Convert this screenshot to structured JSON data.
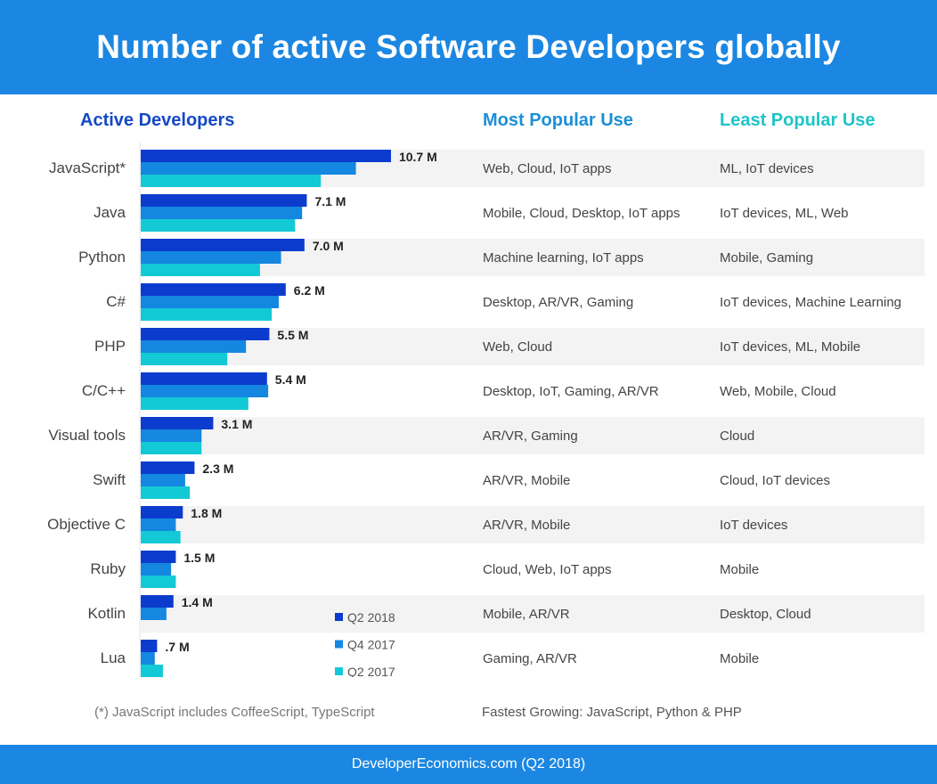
{
  "header": {
    "title": "Number of active Software Developers globally"
  },
  "columns": {
    "active": "Active Developers",
    "most": "Most Popular Use",
    "least": "Least Popular Use"
  },
  "colors": {
    "q2_2018": "#0b3ccd",
    "q4_2017": "#1487e0",
    "q2_2017": "#14c9d6",
    "stripe": "#f3f3f3"
  },
  "chart_data": {
    "type": "bar",
    "orientation": "horizontal",
    "title": "Active Developers",
    "xlabel": "",
    "ylabel": "",
    "xlim": [
      0,
      11
    ],
    "grid": false,
    "legend_position": "bottom-right of bars",
    "categories": [
      "JavaScript*",
      "Java",
      "Python",
      "C#",
      "PHP",
      "C/C++",
      "Visual tools",
      "Swift",
      "Objective C",
      "Ruby",
      "Kotlin",
      "Lua"
    ],
    "data_labels": [
      "10.7 M",
      "7.1 M",
      "7.0 M",
      "6.2 M",
      "5.5 M",
      "5.4 M",
      "3.1 M",
      "2.3 M",
      "1.8 M",
      "1.5 M",
      "1.4 M",
      ".7 M"
    ],
    "series": [
      {
        "name": "Q2 2018",
        "values": [
          10.7,
          7.1,
          7.0,
          6.2,
          5.5,
          5.4,
          3.1,
          2.3,
          1.8,
          1.5,
          1.4,
          0.7
        ]
      },
      {
        "name": "Q4 2017",
        "values": [
          9.2,
          6.9,
          6.0,
          5.9,
          4.5,
          5.45,
          2.6,
          1.9,
          1.5,
          1.3,
          1.1,
          0.6
        ]
      },
      {
        "name": "Q2 2017",
        "values": [
          7.7,
          6.6,
          5.1,
          5.6,
          3.7,
          4.6,
          2.6,
          2.1,
          1.7,
          1.5,
          0,
          0.95
        ]
      }
    ],
    "unit": "millions"
  },
  "table": {
    "rows": [
      {
        "most": "Web, Cloud, IoT apps",
        "least": "ML, IoT devices"
      },
      {
        "most": "Mobile, Cloud, Desktop, IoT apps",
        "least": "IoT devices, ML, Web"
      },
      {
        "most": "Machine learning, IoT apps",
        "least": "Mobile, Gaming"
      },
      {
        "most": "Desktop, AR/VR, Gaming",
        "least": "IoT devices, Machine Learning"
      },
      {
        "most": "Web, Cloud",
        "least": "IoT devices, ML, Mobile"
      },
      {
        "most": "Desktop, IoT, Gaming, AR/VR",
        "least": "Web, Mobile, Cloud"
      },
      {
        "most": "AR/VR, Gaming",
        "least": "Cloud"
      },
      {
        "most": "AR/VR, Mobile",
        "least": "Cloud, IoT devices"
      },
      {
        "most": "AR/VR, Mobile",
        "least": "IoT devices"
      },
      {
        "most": "Cloud, Web, IoT apps",
        "least": "Mobile"
      },
      {
        "most": "Mobile, AR/VR",
        "least": "Desktop, Cloud"
      },
      {
        "most": "Gaming, AR/VR",
        "least": "Mobile"
      }
    ]
  },
  "notes": {
    "footnote": "(*) JavaScript includes CoffeeScript, TypeScript",
    "fastest": "Fastest Growing: JavaScript, Python & PHP"
  },
  "footer": {
    "source": "DeveloperEconomics.com (Q2 2018)"
  }
}
